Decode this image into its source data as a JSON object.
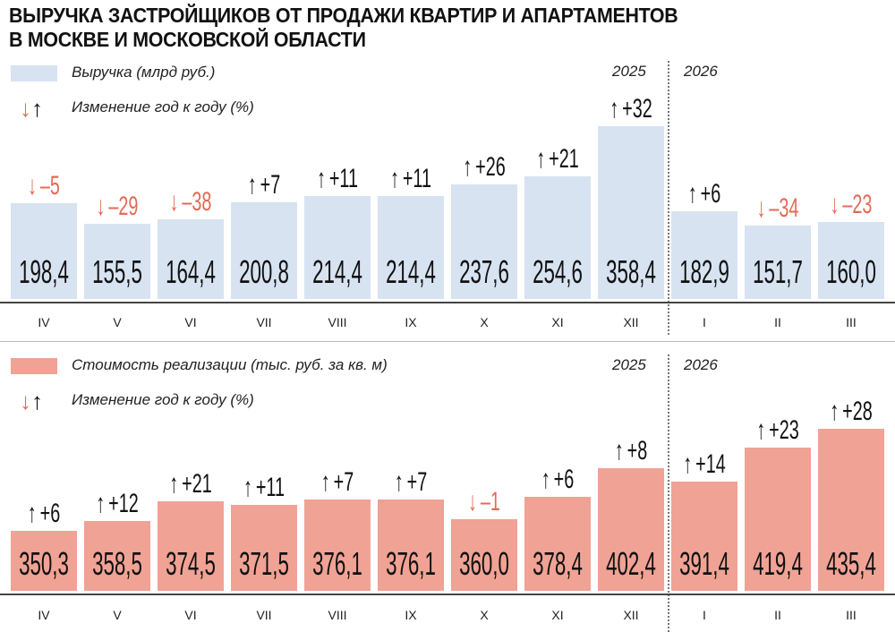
{
  "chart_data": [
    {
      "type": "bar",
      "title": "ВЫРУЧКА ЗАСТРОЙЩИКОВ ОТ ПРОДАЖИ КВАРТИР И АПАРТАМЕНТОВ В МОСКВЕ И МОСКОВСКОЙ ОБЛАСТИ",
      "title_lines": [
        "ВЫРУЧКА ЗАСТРОЙЩИКОВ ОТ ПРОДАЖИ КВАРТИР И АПАРТАМЕНТОВ",
        "В МОСКВЕ И МОСКОВСКОЙ ОБЛАСТИ"
      ],
      "legend": {
        "bar": "Выручка (млрд руб.)",
        "change": "Изменение год к году (%)"
      },
      "years": [
        "2025",
        "2026"
      ],
      "categories": [
        "IV",
        "V",
        "VI",
        "VII",
        "VIII",
        "IX",
        "X",
        "XI",
        "XII",
        "I",
        "II",
        "III"
      ],
      "values": [
        198.4,
        155.5,
        164.4,
        200.8,
        214.4,
        214.4,
        237.6,
        254.6,
        358.4,
        182.9,
        151.7,
        160.0
      ],
      "value_labels": [
        "198,4",
        "155,5",
        "164,4",
        "200,8",
        "214,4",
        "214,4",
        "237,6",
        "254,6",
        "358,4",
        "182,9",
        "151,7",
        "160,0"
      ],
      "yoy_change": [
        -5,
        -29,
        -38,
        7,
        11,
        11,
        26,
        21,
        32,
        6,
        -34,
        -23
      ],
      "yoy_labels": [
        "–5",
        "–29",
        "–38",
        "+7",
        "+11",
        "+11",
        "+26",
        "+21",
        "+32",
        "+6",
        "–34",
        "–23"
      ],
      "ylim": [
        0,
        370
      ],
      "bar_color": "#d7e3f1"
    },
    {
      "type": "bar",
      "legend": {
        "bar": "Стоимость реализации (тыс. руб. за кв. м)",
        "change": "Изменение год к году (%)"
      },
      "years": [
        "2025",
        "2026"
      ],
      "categories": [
        "IV",
        "V",
        "VI",
        "VII",
        "VIII",
        "IX",
        "X",
        "XI",
        "XII",
        "I",
        "II",
        "III"
      ],
      "values": [
        350.3,
        358.5,
        374.5,
        371.5,
        376.1,
        376.1,
        360.0,
        378.4,
        402.4,
        391.4,
        419.4,
        435.4
      ],
      "value_labels": [
        "350,3",
        "358,5",
        "374,5",
        "371,5",
        "376,1",
        "376,1",
        "360,0",
        "378,4",
        "402,4",
        "391,4",
        "419,4",
        "435,4"
      ],
      "yoy_change": [
        6,
        12,
        21,
        11,
        7,
        7,
        -1,
        6,
        8,
        14,
        23,
        28
      ],
      "yoy_labels": [
        "+6",
        "+12",
        "+21",
        "+11",
        "+7",
        "+7",
        "–1",
        "+6",
        "+8",
        "+14",
        "+23",
        "+28"
      ],
      "ylim": [
        300,
        440
      ],
      "bar_color": "#f0a294"
    }
  ],
  "colors": {
    "down": "#e26a56",
    "up": "#111111",
    "axis": "#444444"
  },
  "icons": {
    "up": "↑",
    "down": "↓"
  }
}
